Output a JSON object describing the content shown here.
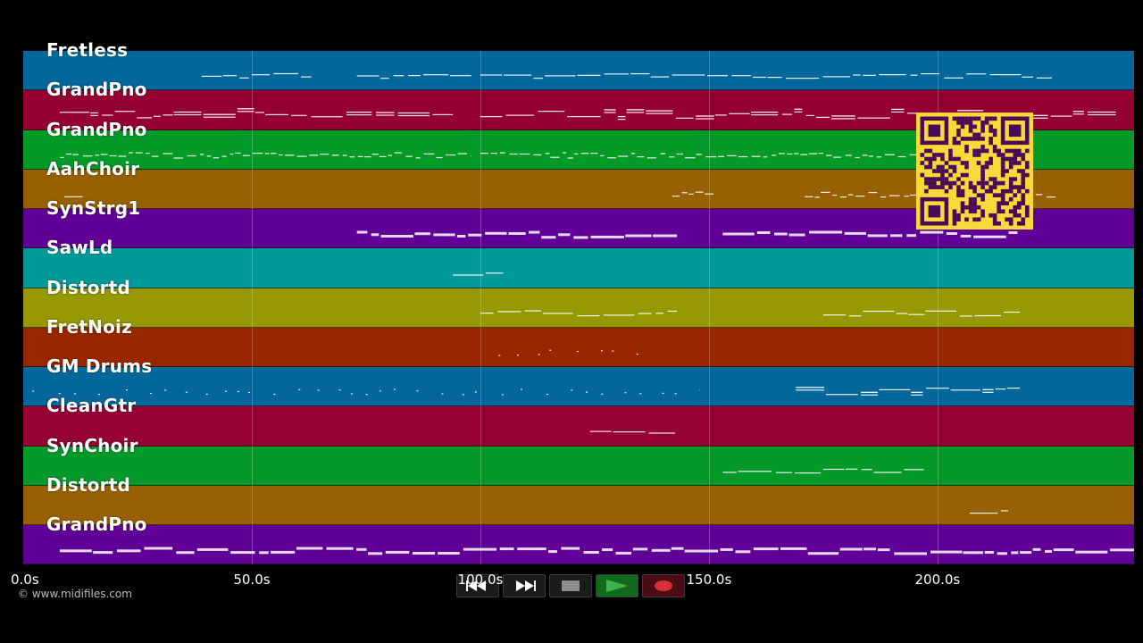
{
  "tracks": [
    {
      "name": "Fretless",
      "color": "#02679b"
    },
    {
      "name": "GrandPno",
      "color": "#950033"
    },
    {
      "name": "GrandPno",
      "color": "#049a27"
    },
    {
      "name": "AahChoir",
      "color": "#976102"
    },
    {
      "name": "SynStrg1",
      "color": "#600096"
    },
    {
      "name": "SawLd",
      "color": "#00999a"
    },
    {
      "name": "Distortd",
      "color": "#979800"
    },
    {
      "name": "FretNoiz",
      "color": "#982700"
    },
    {
      "name": "GM Drums",
      "color": "#03679b"
    },
    {
      "name": "CleanGtr",
      "color": "#960032"
    },
    {
      "name": "SynChoir",
      "color": "#05992a"
    },
    {
      "name": "Distortd",
      "color": "#976002"
    },
    {
      "name": "GrandPno",
      "color": "#610097"
    }
  ],
  "timeline": {
    "ticks": [
      "0.0s",
      "50.0s",
      "100.0s",
      "150.0s",
      "200.0s"
    ],
    "tick_seconds": [
      0,
      50,
      100,
      150,
      200
    ],
    "duration_seconds": 243
  },
  "footer": {
    "copyright": "© www.midifiles.com"
  },
  "transport": {
    "rewind_icon": "rewind-icon",
    "fast_forward_icon": "fast-forward-icon",
    "stop_icon": "stop-icon",
    "play_icon": "play-icon",
    "record_icon": "record-icon"
  },
  "qr_code": {
    "foreground": "#4a0a55",
    "background": "#f7d93a"
  },
  "note_color": "#ffffff"
}
